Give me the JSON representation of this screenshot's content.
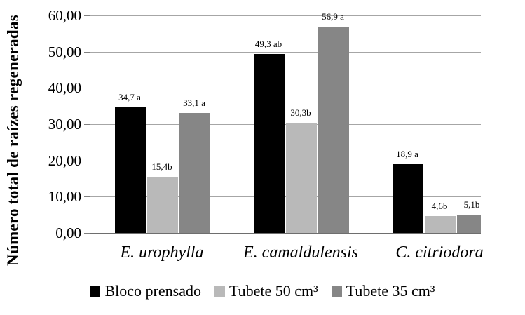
{
  "chart_data": {
    "type": "bar",
    "title": "",
    "ylabel": "Número total de raízes regeneradas",
    "xlabel": "",
    "ylim": [
      0,
      60
    ],
    "ytick_step": 10,
    "yticks": [
      "60,00",
      "50,00",
      "40,00",
      "30,00",
      "20,00",
      "10,00",
      "0,00"
    ],
    "grid": true,
    "legend_position": "bottom",
    "categories": [
      "E. urophylla",
      "E. camaldulensis",
      "C. citriodora"
    ],
    "series": [
      {
        "name": "Bloco prensado",
        "color": "#000000",
        "values": [
          34.7,
          49.3,
          18.9
        ],
        "data_labels": [
          "34,7 a",
          "49,3 ab",
          "18,9 a"
        ]
      },
      {
        "name": "Tubete 50 cm³",
        "color": "#b9b9b9",
        "values": [
          15.4,
          30.3,
          4.6
        ],
        "data_labels": [
          "15,4b",
          "30,3b",
          "4,6b"
        ]
      },
      {
        "name": "Tubete 35 cm³",
        "color": "#868686",
        "values": [
          33.1,
          56.9,
          5.1
        ],
        "data_labels": [
          "33,1 a",
          "56,9 a",
          "5,1b"
        ]
      }
    ]
  },
  "colors": {
    "background": "#ffffff",
    "gridline": "#a6a6a6",
    "axis": "#808080",
    "baseline": "#6e6e6e",
    "text": "#000000"
  }
}
